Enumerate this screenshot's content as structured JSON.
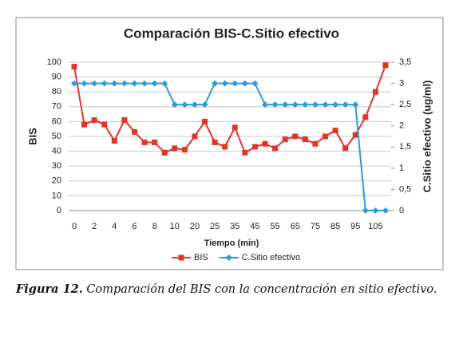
{
  "chart_data": {
    "type": "line",
    "title": "Comparación BIS-C.Sitio efectivo",
    "x_label": "Tiempo (min)",
    "y_label": "BIS",
    "y2_label": "C.Sitio efectivo (ug/ml)",
    "categories": [
      "0",
      null,
      "2",
      null,
      "4",
      null,
      "6",
      null,
      "8",
      null,
      "10",
      null,
      "20",
      null,
      "25",
      null,
      "35",
      null,
      "45",
      null,
      "55",
      null,
      "65",
      null,
      "75",
      null,
      "85",
      null,
      "95",
      null,
      "105",
      null
    ],
    "series": [
      {
        "name": "BIS",
        "color": "#e0352b",
        "marker": "square",
        "values": [
          97,
          58,
          61,
          58,
          47,
          61,
          53,
          46,
          46,
          39,
          42,
          41,
          50,
          60,
          46,
          43,
          56,
          39,
          43,
          45,
          42,
          48,
          50,
          48,
          45,
          50,
          54,
          42,
          51,
          63,
          80,
          98
        ]
      },
      {
        "name": "C.Sitio efectivo",
        "color": "#2e9bd6",
        "marker": "diamond",
        "axis": "y2",
        "values": [
          3,
          3,
          3,
          3,
          3,
          3,
          3,
          3,
          3,
          3,
          2.5,
          2.5,
          2.5,
          2.5,
          3,
          3,
          3,
          3,
          3,
          2.5,
          2.5,
          2.5,
          2.5,
          2.5,
          2.5,
          2.5,
          2.5,
          2.5,
          2.5,
          0,
          0,
          0
        ]
      }
    ],
    "ylim": [
      0,
      100
    ],
    "yticks": [
      0,
      10,
      20,
      30,
      40,
      50,
      60,
      70,
      80,
      90,
      100
    ],
    "y2lim": [
      0,
      3.5
    ],
    "y2ticks": [
      0,
      {
        "value": 0.5,
        "label": "0,5"
      },
      1,
      {
        "value": 1.5,
        "label": "1,5"
      },
      2,
      {
        "value": 2.5,
        "label": "2,5"
      },
      3,
      {
        "value": 3.5,
        "label": "3,5"
      }
    ],
    "grid": true,
    "legend": "bottom"
  },
  "caption": {
    "label": "Figura 12.",
    "text": "Comparación del BIS con la concentración en sitio efectivo."
  }
}
